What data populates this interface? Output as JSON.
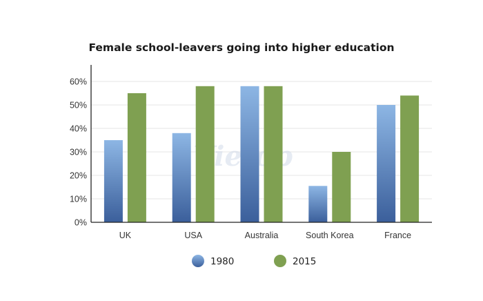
{
  "chart_data": {
    "type": "bar",
    "title": "Female school-leavers going into higher education",
    "categories": [
      "UK",
      "USA",
      "Australia",
      "South Korea",
      "France"
    ],
    "series": [
      {
        "name": "1980",
        "values": [
          35,
          38,
          58,
          15.5,
          50
        ]
      },
      {
        "name": "2015",
        "values": [
          55,
          58,
          58,
          30,
          54
        ]
      }
    ],
    "y_ticks": [
      "0%",
      "10%",
      "20%",
      "30%",
      "40%",
      "50%",
      "60%"
    ],
    "ylim": [
      0,
      60
    ],
    "grid": true,
    "legend_placement": "bottom-center",
    "colors": {
      "series_1980_top": "#8db6e4",
      "series_1980_bottom": "#3b5f9b",
      "series_2015": "#7fa051"
    }
  },
  "watermark_text": "Vietop"
}
